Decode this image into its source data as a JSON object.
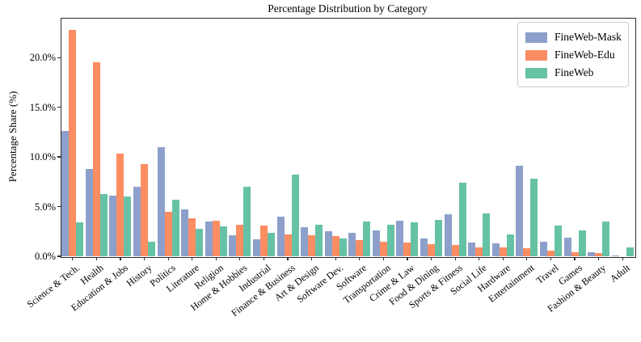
{
  "figure": {
    "title": "Percentage Distribution by Category",
    "ylabel": "Percentage Share (%)"
  },
  "chart_data": {
    "type": "bar",
    "title": "Percentage Distribution by Category",
    "xlabel": "",
    "ylabel": "Percentage Share (%)",
    "ylim": [
      0,
      24
    ],
    "grid": false,
    "legend_position": "upper right",
    "yticks": [
      {
        "value": 0,
        "label": "0.0%"
      },
      {
        "value": 5,
        "label": "5.0%"
      },
      {
        "value": 10,
        "label": "10.0%"
      },
      {
        "value": 15,
        "label": "15.0%"
      },
      {
        "value": 20,
        "label": "20.0%"
      }
    ],
    "categories": [
      "Science & Tech.",
      "Health",
      "Education & Jobs",
      "History",
      "Politics",
      "Literature",
      "Religion",
      "Home & Hobbies",
      "Industrial",
      "Finance & Business",
      "Art & Design",
      "Software Dev.",
      "Software",
      "Transportation",
      "Crime & Law",
      "Food & Dining",
      "Sports & Fitness",
      "Social Life",
      "Hardware",
      "Entertainment",
      "Travel",
      "Games",
      "Fashion & Beauty",
      "Adult"
    ],
    "series": [
      {
        "name": "FineWeb-Mask",
        "color": "#8da0cb",
        "values": [
          12.6,
          8.8,
          6.1,
          7.0,
          11.0,
          4.7,
          3.5,
          2.1,
          1.7,
          4.0,
          2.9,
          2.5,
          2.4,
          2.6,
          3.6,
          1.8,
          4.2,
          1.4,
          1.3,
          9.1,
          1.5,
          1.9,
          0.4,
          0.1
        ]
      },
      {
        "name": "FineWeb-Edu",
        "color": "#fc8d62",
        "values": [
          22.8,
          19.5,
          10.3,
          9.3,
          4.5,
          3.8,
          3.6,
          3.2,
          3.1,
          2.2,
          2.1,
          2.0,
          1.6,
          1.5,
          1.4,
          1.2,
          1.1,
          0.9,
          0.9,
          0.8,
          0.6,
          0.4,
          0.3,
          0.0
        ]
      },
      {
        "name": "FineWeb",
        "color": "#66c2a5",
        "values": [
          3.4,
          6.3,
          6.0,
          1.5,
          5.7,
          2.8,
          3.0,
          7.0,
          2.4,
          8.2,
          3.2,
          1.8,
          3.5,
          3.2,
          3.4,
          3.7,
          7.4,
          4.3,
          2.2,
          7.8,
          3.1,
          2.6,
          3.5,
          0.9
        ]
      }
    ]
  }
}
